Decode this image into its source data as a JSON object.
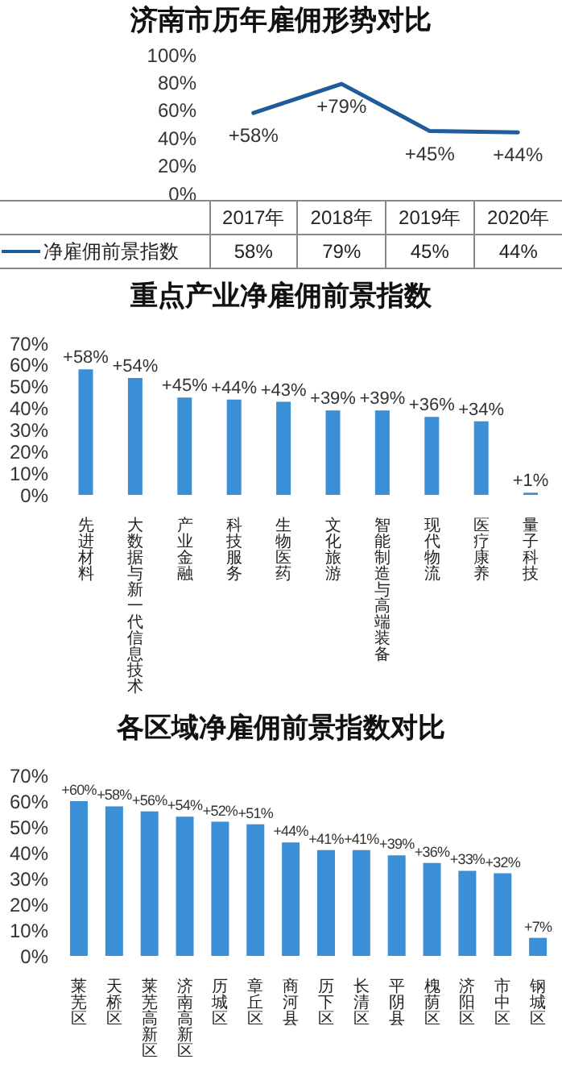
{
  "chart_data": [
    {
      "type": "line",
      "title": "济南市历年雇佣形势对比",
      "categories": [
        "2017年",
        "2018年",
        "2019年",
        "2020年"
      ],
      "series": [
        {
          "name": "净雇佣前景指数",
          "color": "#1f5c99",
          "values": [
            58,
            79,
            45,
            44
          ],
          "value_labels": [
            "+58%",
            "+79%",
            "+45%",
            "+44%"
          ]
        }
      ],
      "ylim": [
        0,
        100
      ],
      "yticks": [
        {
          "value": 0,
          "label": "0%"
        },
        {
          "value": 20,
          "label": "20%"
        },
        {
          "value": 40,
          "label": "40%"
        },
        {
          "value": 60,
          "label": "60%"
        },
        {
          "value": 80,
          "label": "80%"
        },
        {
          "value": 100,
          "label": "100%"
        }
      ],
      "annotations": [
        "58%",
        "79%",
        "45%",
        "44%"
      ],
      "legend": "bottom",
      "marker": "none",
      "line_style": "solid",
      "grid": false
    },
    {
      "type": "bar",
      "title": "重点产业净雇佣前景指数",
      "categories": [
        "先进材料",
        "大数据与新一代信息技术",
        "产业金融",
        "科技服务",
        "生物医药",
        "文化旅游",
        "智能制造与高端装备",
        "现代物流",
        "医疗康养",
        "量子科技"
      ],
      "series": [
        {
          "color": "#3a8fd6",
          "values": [
            58,
            54,
            45,
            44,
            43,
            39,
            39,
            36,
            34,
            1
          ],
          "value_labels": [
            "+58%",
            "+54%",
            "+45%",
            "+44%",
            "+43%",
            "+39%",
            "+39%",
            "+36%",
            "+34%",
            "+1%"
          ]
        }
      ],
      "ylim": [
        0,
        70
      ],
      "yticks": [
        {
          "value": 0,
          "label": "0%"
        },
        {
          "value": 10,
          "label": "10%"
        },
        {
          "value": 20,
          "label": "20%"
        },
        {
          "value": 30,
          "label": "30%"
        },
        {
          "value": 40,
          "label": "40%"
        },
        {
          "value": 50,
          "label": "50%"
        },
        {
          "value": 60,
          "label": "60%"
        },
        {
          "value": 70,
          "label": "70%"
        }
      ],
      "grid": false
    },
    {
      "type": "bar",
      "title": "各区域净雇佣前景指数对比",
      "categories": [
        "莱芜区",
        "天桥区",
        "莱芜高新区",
        "济南高新区",
        "历城区",
        "章丘区",
        "商河县",
        "历下区",
        "长清区",
        "平阴县",
        "槐荫区",
        "济阳区",
        "市中区",
        "钢城区"
      ],
      "series": [
        {
          "color": "#3a8fd6",
          "values": [
            60,
            58,
            56,
            54,
            52,
            51,
            44,
            41,
            41,
            39,
            36,
            33,
            32,
            7
          ],
          "value_labels": [
            "+60%",
            "+58%",
            "+56%",
            "+54%",
            "+52%",
            "+51%",
            "+44%",
            "+41%",
            "+41%",
            "+39%",
            "+36%",
            "+33%",
            "+32%",
            "+7%"
          ]
        }
      ],
      "ylim": [
        0,
        70
      ],
      "yticks": [
        {
          "value": 0,
          "label": "0%"
        },
        {
          "value": 10,
          "label": "10%"
        },
        {
          "value": 20,
          "label": "20%"
        },
        {
          "value": 30,
          "label": "30%"
        },
        {
          "value": 40,
          "label": "40%"
        },
        {
          "value": 50,
          "label": "50%"
        },
        {
          "value": 60,
          "label": "60%"
        },
        {
          "value": 70,
          "label": "70%"
        }
      ],
      "grid": false
    }
  ]
}
